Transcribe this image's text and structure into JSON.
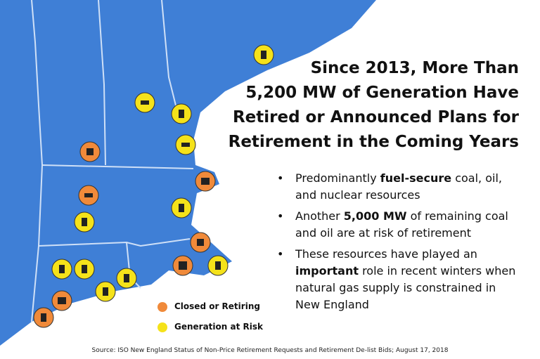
{
  "header": {
    "title_lines": [
      "Since 2013, More Than",
      "5,200 MW of Generation Have",
      "Retired or Announced Plans for",
      "Retirement in the Coming Years"
    ]
  },
  "bullets": [
    [
      "Predominantly ",
      "fuel-secure",
      " coal, oil, and nuclear resources"
    ],
    [
      "Another ",
      "5,000 MW",
      " of remaining coal and oil are at risk of retirement"
    ],
    [
      "These resources have played an ",
      "important",
      " role in recent winters when natural gas supply is constrained in New England"
    ]
  ],
  "legend": [
    "Closed or Retiring",
    "Generation at Risk"
  ],
  "source": "Source: ISO New England Status of Non-Price Retirement Requests and Retirement De-list Bids; August 17, 2018"
}
